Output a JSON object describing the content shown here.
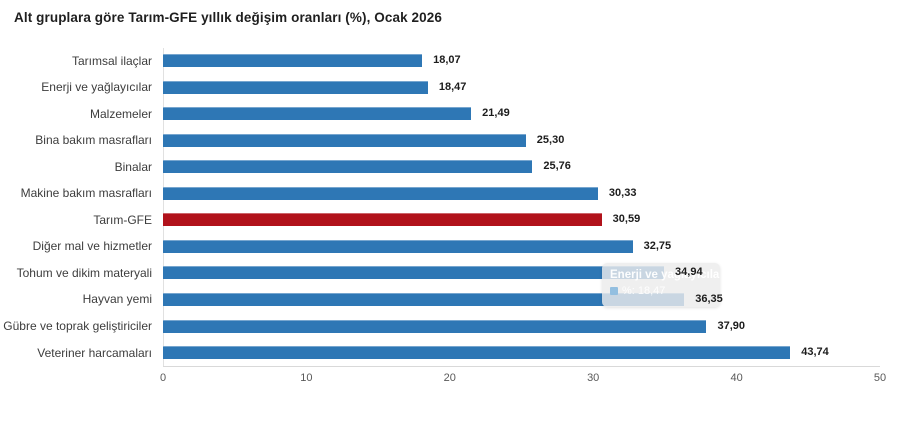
{
  "chart_data": {
    "type": "bar",
    "orientation": "horizontal",
    "title": "Alt gruplara göre Tarım-GFE yıllık değişim oranları (%), Ocak 2026",
    "categories": [
      "Tarımsal ilaçlar",
      "Enerji  ve yağlayıcılar",
      "Malzemeler",
      "Bina bakım masrafları",
      "Binalar",
      "Makine bakım masrafları",
      "Tarım-GFE",
      "Diğer mal ve hizmetler",
      "Tohum ve dikim materyali",
      "Hayvan yemi",
      "Gübre ve toprak geliştiriciler",
      "Veteriner harcamaları"
    ],
    "values": [
      18.07,
      18.47,
      21.49,
      25.3,
      25.76,
      30.33,
      30.59,
      32.75,
      34.94,
      36.35,
      37.9,
      43.74
    ],
    "value_labels": [
      "18,07",
      "18,47",
      "21,49",
      "25,30",
      "25,76",
      "30,33",
      "30,59",
      "32,75",
      "34,94",
      "36,35",
      "37,90",
      "43,74"
    ],
    "highlight_index": 6,
    "highlight_category": "Tarım-GFE",
    "xlim": [
      0,
      50
    ],
    "xticks": [
      "0",
      "10",
      "20",
      "30",
      "40",
      "50"
    ],
    "grid": false,
    "legend": false,
    "colors": {
      "bar": "#2e77b5",
      "highlight_bar": "#b1121b",
      "axis_line": "#d9d9d9"
    }
  },
  "tooltip": {
    "title": "Enerji  ve yağlayıcılar",
    "series_text": "%: 18,47",
    "marker_color": "#93bfe0",
    "background": "rgba(235,235,235,0.82)"
  }
}
